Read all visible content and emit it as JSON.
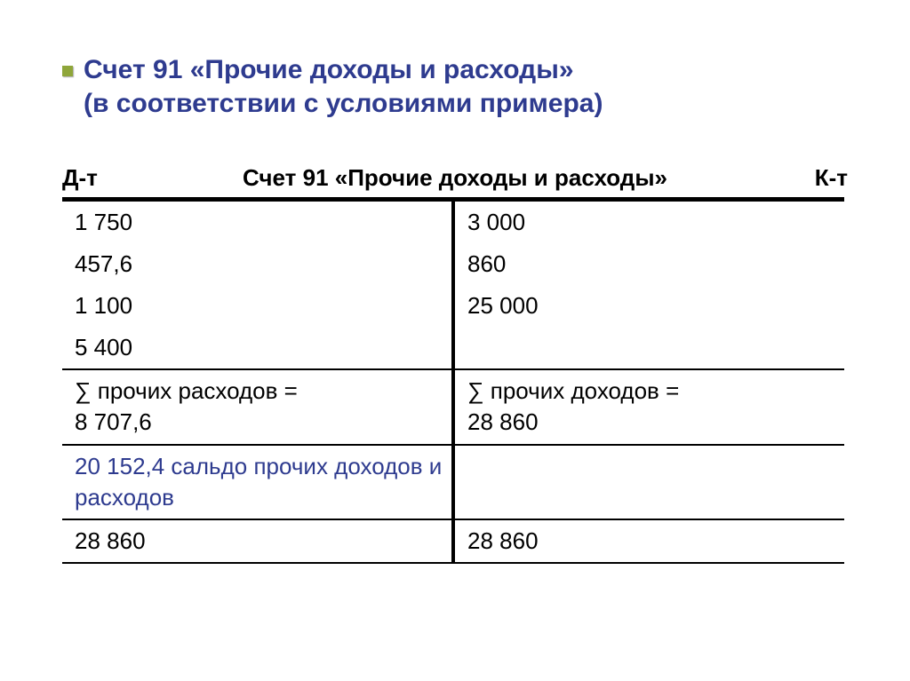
{
  "colors": {
    "title_color": "#2e3b8f",
    "bullet_color": "#8fa63a",
    "text_color": "#000000",
    "saldo_color": "#2e3b8f",
    "border_color": "#000000",
    "background": "#ffffff"
  },
  "typography": {
    "title_fontsize_pt": 22,
    "body_fontsize_pt": 20,
    "title_weight": "bold",
    "header_weight": "bold"
  },
  "title": {
    "line1": "Счет 91 «Прочие доходы и расходы»",
    "line2": "(в соответствии с условиями примера)"
  },
  "t_account": {
    "type": "table",
    "title": "Счет 91 «Прочие доходы и расходы»",
    "debit_label": "Д-т",
    "credit_label": "К-т",
    "entries": {
      "debit": [
        "1 750",
        "457,6",
        "1 100",
        "5 400"
      ],
      "credit": [
        "3 000",
        "860",
        "25 000",
        ""
      ]
    },
    "subtotal": {
      "debit_label": "∑ прочих расходов =",
      "debit_value": "8 707,6",
      "credit_label": "∑ прочих доходов =",
      "credit_value": "28 860"
    },
    "saldo": {
      "debit": "20 152,4 сальдо прочих доходов и расходов",
      "credit": ""
    },
    "closing": {
      "debit": "28 860",
      "credit": "28 860"
    }
  }
}
